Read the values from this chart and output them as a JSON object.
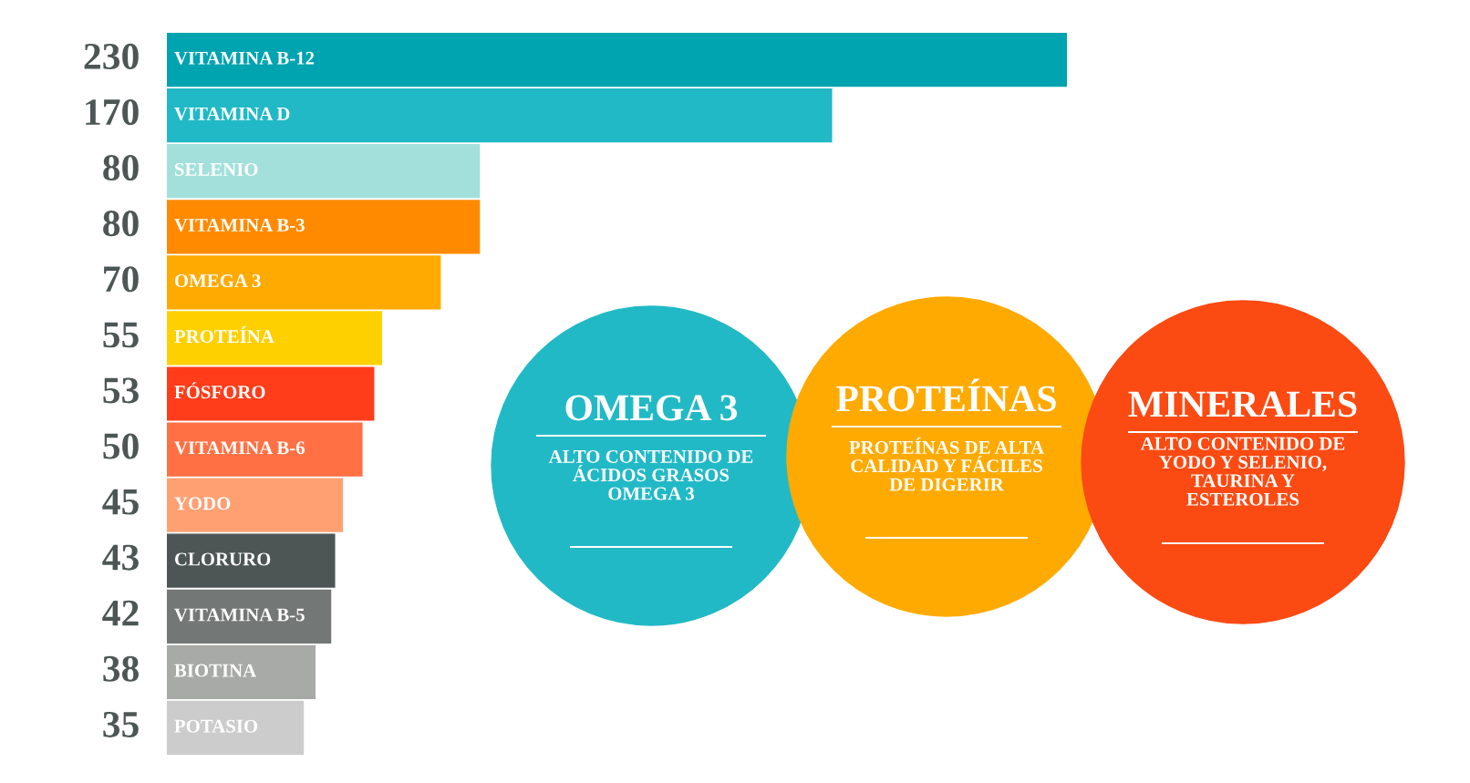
{
  "chart_data": {
    "type": "bar",
    "orientation": "horizontal",
    "data_labels": true,
    "categories": [
      "VITAMINA B-12",
      "VITAMINA D",
      "SELENIO",
      "VITAMINA B-3",
      "OMEGA 3",
      "PROTEÍNA",
      "FÓSFORO",
      "VITAMINA B-6",
      "YODO",
      "CLORURO",
      "VITAMINA B-5",
      "BIOTINA",
      "POTASIO"
    ],
    "values": [
      230,
      170,
      80,
      80,
      70,
      55,
      53,
      50,
      45,
      43,
      42,
      38,
      35
    ],
    "colors": [
      "#00a3b0",
      "#22b9c6",
      "#a3e0dc",
      "#ff8a00",
      "#ffaa00",
      "#ffd000",
      "#ff3d1a",
      "#ff7144",
      "#ffa073",
      "#4d5555",
      "#737775",
      "#a8aaa7",
      "#cccccc"
    ],
    "annotations": [
      "OMEGA 3",
      "ALTO CONTENIDO DE\nÁCIDOS GRASOS\nOMEGA 3",
      "PROTEÍNAS",
      "PROTEÍNAS DE ALTA\nCALIDAD Y FÁCILES\nDE DIGERIR",
      "MINERALES",
      "ALTO CONTENIDO DE\nYODO Y SELENIO,\nTAURINA Y\nESTEROLES"
    ]
  }
}
